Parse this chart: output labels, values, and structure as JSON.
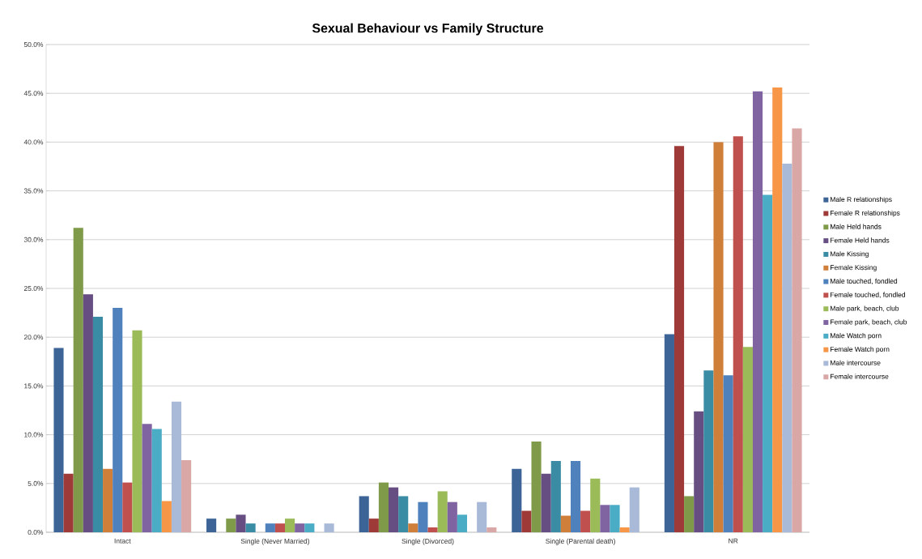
{
  "chart_data": {
    "type": "bar",
    "title": "Sexual Behaviour vs Family Structure",
    "categories": [
      "Intact",
      "Single (Never Married)",
      "Single (Divorced)",
      "Single (Parental death)",
      "NR"
    ],
    "series": [
      {
        "name": "Male R relationships",
        "color": "#3c6496",
        "values": [
          18.9,
          1.4,
          3.7,
          6.5,
          20.3
        ]
      },
      {
        "name": "Female R relationships",
        "color": "#9e3b38",
        "values": [
          6.0,
          0,
          1.4,
          2.2,
          39.6
        ]
      },
      {
        "name": "Male Held hands",
        "color": "#7f9a48",
        "values": [
          31.2,
          1.4,
          5.1,
          9.3,
          3.7
        ]
      },
      {
        "name": "Female Held hands",
        "color": "#664e82",
        "values": [
          24.4,
          1.8,
          4.6,
          6.0,
          12.4
        ]
      },
      {
        "name": "Male Kissing",
        "color": "#3a8ca5",
        "values": [
          22.1,
          0.9,
          3.7,
          7.3,
          16.6
        ]
      },
      {
        "name": "Female Kissing",
        "color": "#d07f3a",
        "values": [
          6.5,
          0,
          0.9,
          1.7,
          40.0
        ]
      },
      {
        "name": "Male touched, fondled",
        "color": "#4f81bd",
        "values": [
          23.0,
          0.9,
          3.1,
          7.3,
          16.1
        ]
      },
      {
        "name": "Female touched, fondled",
        "color": "#c0504d",
        "values": [
          5.1,
          0.9,
          0.5,
          2.2,
          40.6
        ]
      },
      {
        "name": "Male park, beach, club",
        "color": "#9bbb59",
        "values": [
          20.7,
          1.4,
          4.2,
          5.5,
          19.0
        ]
      },
      {
        "name": "Female park, beach, club",
        "color": "#8064a2",
        "values": [
          11.1,
          0.9,
          3.1,
          2.8,
          45.2
        ]
      },
      {
        "name": "Male Watch porn",
        "color": "#4bacc6",
        "values": [
          10.6,
          0.9,
          1.8,
          2.8,
          34.6
        ]
      },
      {
        "name": "Female Watch porn",
        "color": "#f79646",
        "values": [
          3.2,
          0,
          0,
          0.5,
          45.6
        ]
      },
      {
        "name": "Male intercourse",
        "color": "#a9b9d8",
        "values": [
          13.4,
          0.9,
          3.1,
          4.6,
          37.8
        ]
      },
      {
        "name": "Female intercourse",
        "color": "#d9a7a6",
        "values": [
          7.4,
          0,
          0.5,
          0,
          41.4
        ]
      }
    ],
    "ylim": [
      0,
      50
    ],
    "yticks": [
      {
        "value": 0,
        "label": "0.0%"
      },
      {
        "value": 5,
        "label": "5.0%"
      },
      {
        "value": 10,
        "label": "10.0%"
      },
      {
        "value": 15,
        "label": "15.0%"
      },
      {
        "value": 20,
        "label": "20.0%"
      },
      {
        "value": 25,
        "label": "25.0%"
      },
      {
        "value": 30,
        "label": "30.0%"
      },
      {
        "value": 35,
        "label": "35.0%"
      },
      {
        "value": 40,
        "label": "40.0%"
      },
      {
        "value": 45,
        "label": "45.0%"
      },
      {
        "value": 50,
        "label": "50.0%"
      }
    ],
    "grid": "y",
    "legend": "right"
  }
}
